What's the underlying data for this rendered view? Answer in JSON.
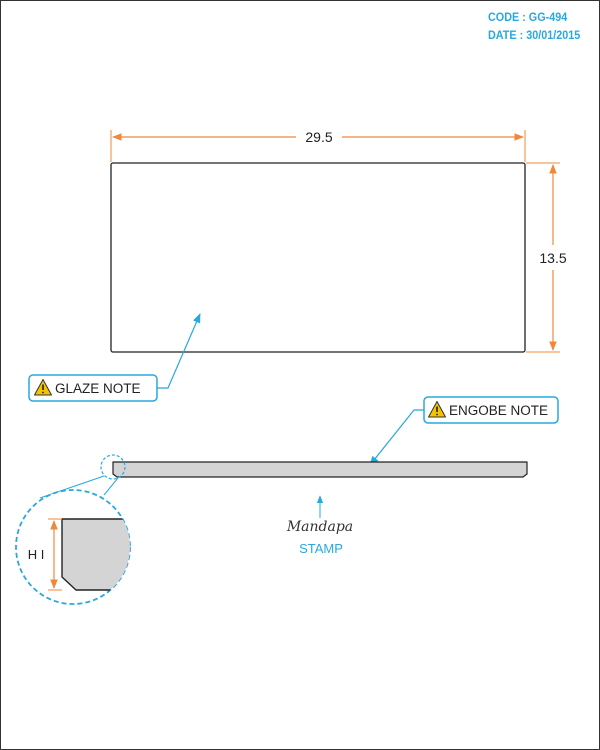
{
  "header": {
    "code_line": "CODE : GG-494",
    "date_line": "DATE : 30/01/2015"
  },
  "dimensions": {
    "width": "29.5",
    "height": "13.5",
    "thickness": "H I"
  },
  "notes": {
    "glaze": "GLAZE NOTE",
    "engobe": "ENGOBE NOTE"
  },
  "stamp": {
    "logo_text": "Mandapa",
    "label": "STAMP"
  },
  "colors": {
    "dimension_orange": "#f0883a",
    "accent_blue": "#29a8e0",
    "warning_yellow": "#f5c400",
    "tile_grey": "#d4d4d4",
    "outline": "#222222"
  }
}
